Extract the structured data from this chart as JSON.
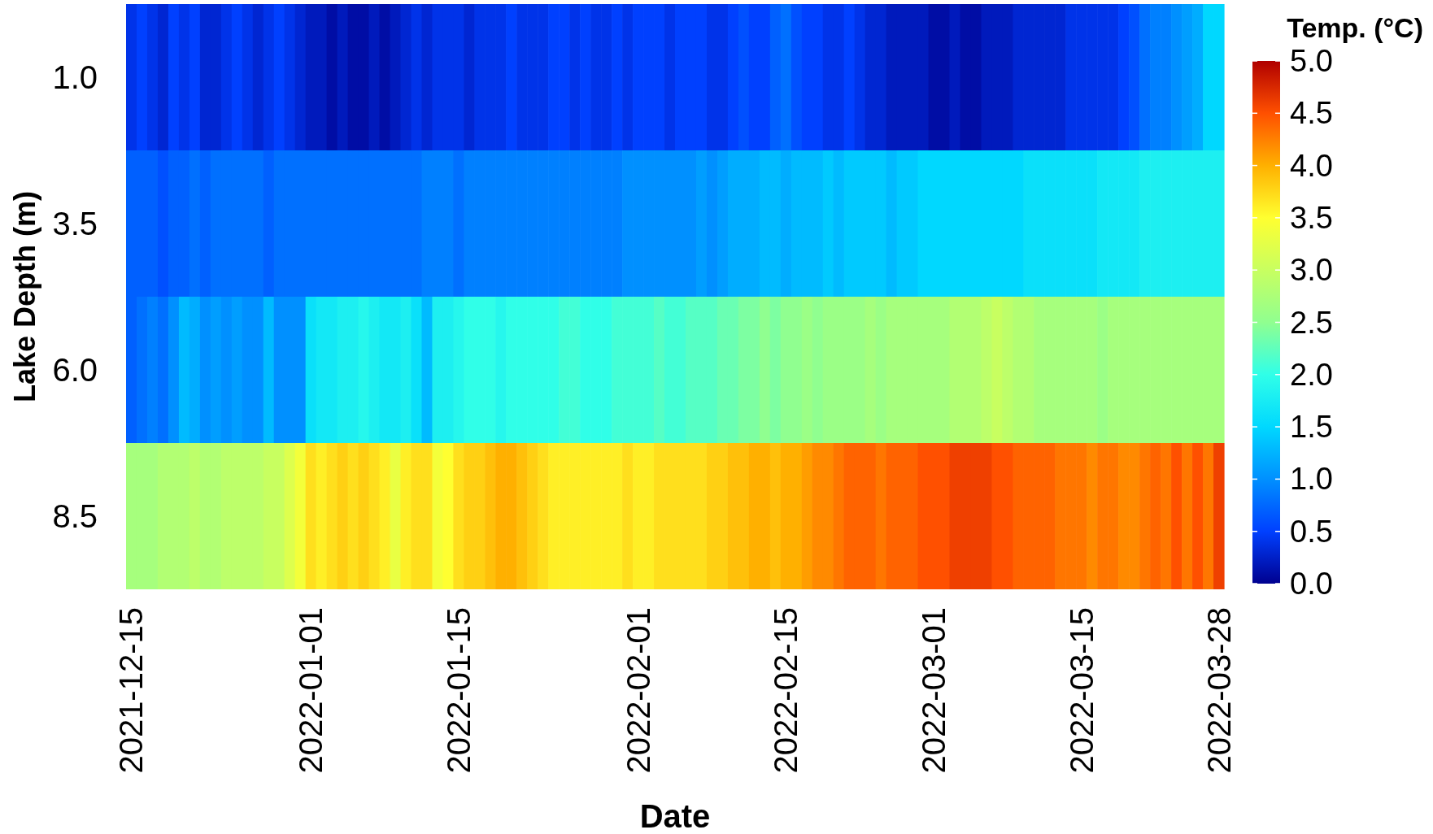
{
  "chart_data": {
    "type": "heatmap",
    "xlabel": "Date",
    "ylabel": "Lake Depth (m)",
    "clabel": "Temp. (°C)",
    "categories": [
      "2021-12-15",
      null,
      null,
      null,
      null,
      null,
      null,
      null,
      null,
      null,
      null,
      null,
      null,
      null,
      null,
      null,
      null,
      "2022-01-01",
      null,
      null,
      null,
      null,
      null,
      null,
      null,
      null,
      null,
      null,
      null,
      null,
      null,
      "2022-01-15",
      null,
      null,
      null,
      null,
      null,
      null,
      null,
      null,
      null,
      null,
      null,
      null,
      null,
      null,
      null,
      null,
      "2022-02-01",
      null,
      null,
      null,
      null,
      null,
      null,
      null,
      null,
      null,
      null,
      null,
      null,
      null,
      "2022-02-15",
      null,
      null,
      null,
      null,
      null,
      null,
      null,
      null,
      null,
      null,
      null,
      null,
      null,
      "2022-03-01",
      null,
      null,
      null,
      null,
      null,
      null,
      null,
      null,
      null,
      null,
      null,
      null,
      null,
      "2022-03-15",
      null,
      null,
      null,
      null,
      null,
      null,
      null,
      null,
      null,
      null,
      null,
      null,
      "2022-03-28"
    ],
    "y_categories": [
      "1.0",
      "3.5",
      "6.0",
      "8.5"
    ],
    "cells": [
      [
        0.4,
        0.5,
        0.4,
        0.3,
        0.5,
        0.4,
        0.5,
        0.3,
        0.3,
        0.4,
        0.5,
        0.4,
        0.3,
        0.4,
        0.5,
        0.4,
        0.3,
        0.2,
        0.2,
        0.1,
        0.2,
        0.1,
        0.1,
        0.2,
        0.1,
        0.2,
        0.3,
        0.4,
        0.3,
        0.4,
        0.4,
        0.4,
        0.3,
        0.4,
        0.4,
        0.4,
        0.5,
        0.4,
        0.4,
        0.4,
        0.5,
        0.5,
        0.4,
        0.5,
        0.4,
        0.4,
        0.5,
        0.4,
        0.5,
        0.5,
        0.5,
        0.4,
        0.5,
        0.5,
        0.5,
        0.4,
        0.4,
        0.5,
        0.6,
        0.5,
        0.5,
        0.7,
        0.8,
        0.6,
        0.5,
        0.5,
        0.4,
        0.4,
        0.5,
        0.4,
        0.3,
        0.3,
        0.2,
        0.2,
        0.2,
        0.2,
        0.1,
        0.1,
        0.2,
        0.1,
        0.1,
        0.2,
        0.2,
        0.2,
        0.3,
        0.3,
        0.3,
        0.3,
        0.3,
        0.4,
        0.4,
        0.4,
        0.4,
        0.4,
        0.5,
        0.6,
        0.8,
        0.9,
        0.9,
        1.0,
        1.1,
        1.2,
        1.5,
        1.5
      ],
      [
        0.7,
        0.7,
        0.7,
        0.6,
        0.7,
        0.7,
        0.8,
        0.7,
        0.8,
        0.8,
        0.8,
        0.8,
        0.8,
        0.7,
        0.8,
        0.8,
        0.8,
        0.8,
        0.8,
        0.8,
        0.8,
        0.8,
        0.8,
        0.8,
        0.8,
        0.8,
        0.8,
        0.8,
        0.9,
        0.9,
        0.9,
        0.8,
        0.9,
        0.9,
        0.9,
        0.9,
        0.9,
        0.9,
        0.9,
        0.9,
        0.9,
        0.9,
        0.9,
        0.9,
        0.9,
        0.9,
        0.9,
        1.0,
        1.0,
        1.0,
        1.0,
        1.0,
        1.0,
        1.0,
        1.1,
        1.0,
        1.1,
        1.2,
        1.2,
        1.2,
        1.3,
        1.3,
        1.2,
        1.3,
        1.3,
        1.3,
        1.4,
        1.3,
        1.4,
        1.4,
        1.4,
        1.4,
        1.3,
        1.4,
        1.4,
        1.5,
        1.5,
        1.5,
        1.5,
        1.5,
        1.5,
        1.5,
        1.5,
        1.5,
        1.5,
        1.6,
        1.6,
        1.6,
        1.6,
        1.6,
        1.6,
        1.6,
        1.7,
        1.7,
        1.7,
        1.7,
        1.8,
        1.8,
        1.8,
        1.8,
        1.8,
        1.8,
        1.8,
        1.8
      ],
      [
        0.7,
        0.8,
        0.9,
        0.8,
        1.0,
        1.3,
        1.2,
        1.0,
        1.1,
        1.0,
        1.1,
        1.0,
        1.0,
        1.3,
        1.0,
        1.0,
        1.0,
        1.6,
        1.7,
        1.7,
        1.8,
        1.8,
        1.9,
        1.8,
        1.7,
        1.7,
        1.8,
        1.6,
        1.3,
        1.8,
        1.8,
        1.9,
        2.0,
        2.0,
        2.0,
        1.9,
        2.0,
        2.0,
        2.0,
        2.0,
        2.0,
        2.1,
        2.1,
        2.0,
        2.0,
        2.0,
        2.1,
        2.1,
        2.1,
        2.1,
        2.2,
        2.1,
        2.1,
        2.2,
        2.2,
        2.2,
        2.3,
        2.3,
        2.4,
        2.4,
        2.5,
        2.4,
        2.5,
        2.5,
        2.6,
        2.5,
        2.6,
        2.6,
        2.6,
        2.6,
        2.7,
        2.6,
        2.7,
        2.7,
        2.7,
        2.7,
        2.7,
        2.7,
        2.8,
        2.8,
        2.8,
        2.9,
        3.0,
        2.9,
        2.8,
        2.8,
        2.7,
        2.7,
        2.7,
        2.7,
        2.7,
        2.7,
        2.6,
        2.7,
        2.7,
        2.7,
        2.7,
        2.7,
        2.7,
        2.7,
        2.7,
        2.7,
        2.7,
        2.7
      ],
      [
        2.7,
        2.7,
        2.7,
        2.8,
        2.8,
        2.8,
        2.9,
        2.8,
        2.8,
        2.9,
        2.9,
        2.9,
        2.9,
        3.0,
        3.0,
        3.2,
        3.4,
        3.7,
        3.6,
        3.7,
        3.8,
        3.7,
        3.8,
        3.7,
        3.6,
        3.3,
        3.6,
        3.7,
        3.7,
        3.4,
        3.5,
        3.7,
        3.8,
        3.8,
        3.9,
        4.0,
        4.0,
        3.9,
        3.8,
        3.7,
        3.6,
        3.6,
        3.6,
        3.6,
        3.6,
        3.6,
        3.6,
        3.7,
        3.6,
        3.6,
        3.7,
        3.7,
        3.7,
        3.7,
        3.7,
        3.8,
        3.8,
        3.9,
        3.9,
        4.0,
        4.0,
        3.9,
        4.0,
        4.0,
        4.1,
        4.2,
        4.2,
        4.3,
        4.4,
        4.4,
        4.4,
        4.3,
        4.4,
        4.4,
        4.4,
        4.5,
        4.5,
        4.5,
        4.6,
        4.6,
        4.6,
        4.6,
        4.5,
        4.5,
        4.4,
        4.4,
        4.4,
        4.4,
        4.3,
        4.3,
        4.3,
        4.2,
        4.3,
        4.3,
        4.2,
        4.2,
        4.3,
        4.4,
        4.3,
        4.5,
        4.3,
        4.5,
        4.3,
        4.6
      ]
    ],
    "clim": [
      0,
      5
    ],
    "cticks": [
      {
        "value": 0,
        "label": "0.0"
      },
      {
        "value": 0.5,
        "label": "0.5"
      },
      {
        "value": 1,
        "label": "1.0"
      },
      {
        "value": 1.5,
        "label": "1.5"
      },
      {
        "value": 2,
        "label": "2.0"
      },
      {
        "value": 2.5,
        "label": "2.5"
      },
      {
        "value": 3,
        "label": "3.0"
      },
      {
        "value": 3.5,
        "label": "3.5"
      },
      {
        "value": 4,
        "label": "4.0"
      },
      {
        "value": 4.5,
        "label": "4.5"
      },
      {
        "value": 5,
        "label": "5.0"
      }
    ]
  }
}
